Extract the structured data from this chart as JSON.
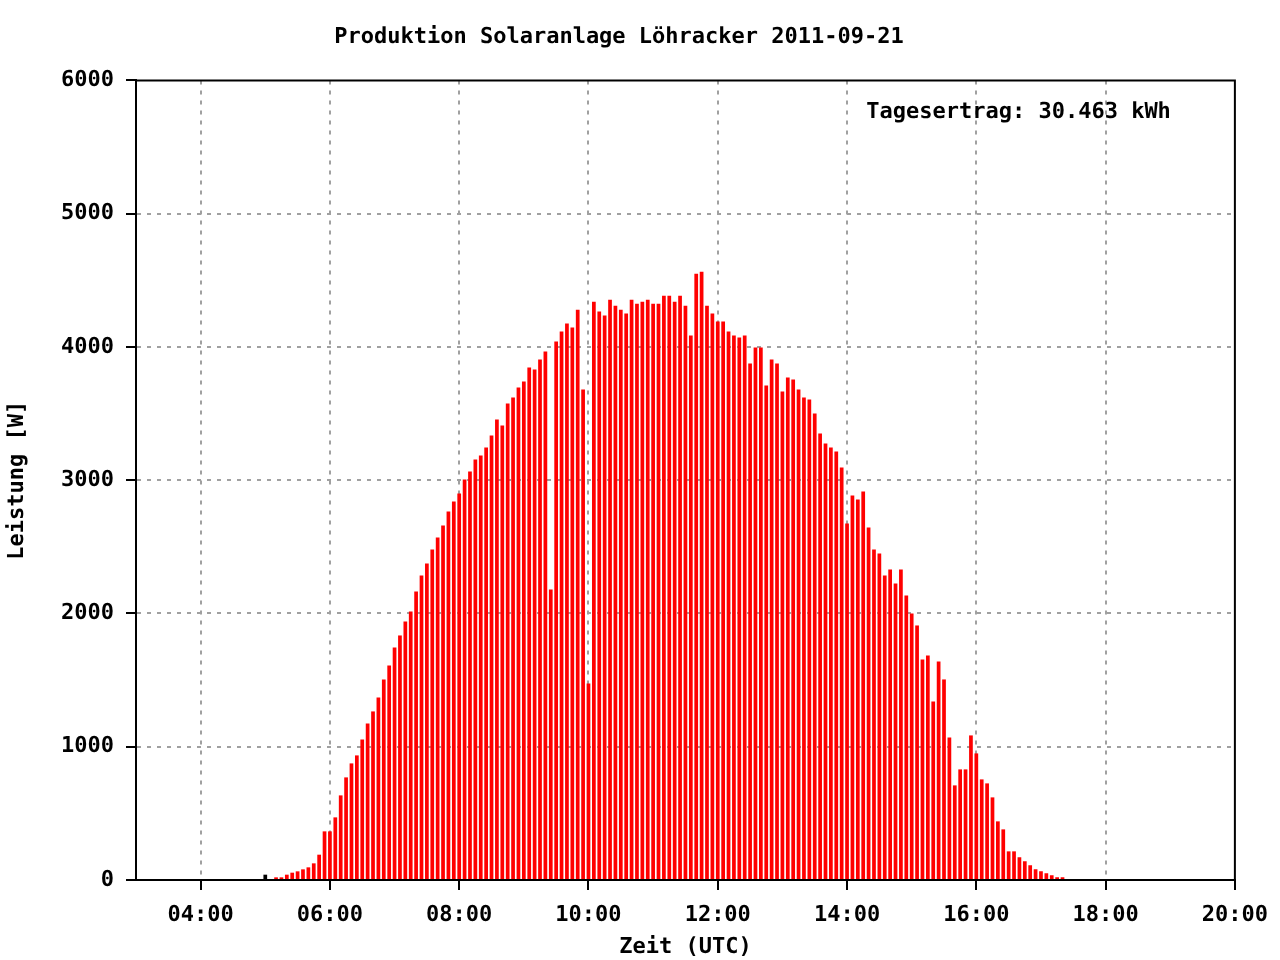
{
  "chart_data": {
    "type": "bar",
    "title": "Produktion Solaranlage Löhracker 2011-09-21",
    "xlabel": "Zeit (UTC)",
    "ylabel": "Leistung [W]",
    "annotations": [
      "Tagesertrag: 30.463 kWh"
    ],
    "x": [
      5,
      5.1667,
      5.25,
      5.3333,
      5.4167,
      5.5,
      5.5833,
      5.6667,
      5.75,
      5.8333,
      5.9167,
      6,
      6.0833,
      6.1667,
      6.25,
      6.3333,
      6.4167,
      6.5,
      6.5833,
      6.6667,
      6.75,
      6.8333,
      6.9167,
      7,
      7.0833,
      7.1667,
      7.25,
      7.3333,
      7.4167,
      7.5,
      7.5833,
      7.6667,
      7.75,
      7.8333,
      7.9167,
      8,
      8.0833,
      8.1667,
      8.25,
      8.3333,
      8.4167,
      8.5,
      8.5833,
      8.6667,
      8.75,
      8.8333,
      8.9167,
      9,
      9.0833,
      9.1667,
      9.25,
      9.3333,
      9.4167,
      9.5,
      9.5833,
      9.6667,
      9.75,
      9.8333,
      9.9167,
      10,
      10.0833,
      10.1667,
      10.25,
      10.3333,
      10.4167,
      10.5,
      10.5833,
      10.6667,
      10.75,
      10.8333,
      10.9167,
      11,
      11.0833,
      11.1667,
      11.25,
      11.3333,
      11.4167,
      11.5,
      11.5833,
      11.6667,
      11.75,
      11.8333,
      11.9167,
      12,
      12.0833,
      12.1667,
      12.25,
      12.3333,
      12.4167,
      12.5,
      12.5833,
      12.6667,
      12.75,
      12.8333,
      12.9167,
      13,
      13.0833,
      13.1667,
      13.25,
      13.3333,
      13.4167,
      13.5,
      13.5833,
      13.6667,
      13.75,
      13.8333,
      13.9167,
      14,
      14.0833,
      14.1667,
      14.25,
      14.3333,
      14.4167,
      14.5,
      14.5833,
      14.6667,
      14.75,
      14.8333,
      14.9167,
      15,
      15.0833,
      15.1667,
      15.25,
      15.3333,
      15.4167,
      15.5,
      15.5833,
      15.6667,
      15.75,
      15.8333,
      15.9167,
      16,
      16.0833,
      16.1667,
      16.25,
      16.3333,
      16.4167,
      16.5,
      16.5833,
      16.6667,
      16.75,
      16.8333,
      16.9167,
      17,
      17.0833,
      17.1667,
      17.25,
      17.3333
    ],
    "values": [
      35,
      15,
      15,
      35,
      50,
      60,
      75,
      90,
      120,
      185,
      360,
      360,
      465,
      630,
      765,
      870,
      930,
      1050,
      1170,
      1260,
      1365,
      1500,
      1605,
      1740,
      1830,
      1935,
      2010,
      2160,
      2280,
      2370,
      2475,
      2565,
      2655,
      2760,
      2835,
      2895,
      3000,
      3060,
      3150,
      3180,
      3240,
      3330,
      3450,
      3405,
      3570,
      3615,
      3690,
      3735,
      3840,
      3825,
      3900,
      3960,
      2175,
      4035,
      4110,
      4170,
      4140,
      4275,
      3675,
      1470,
      4335,
      4260,
      4230,
      4350,
      4305,
      4275,
      4245,
      4350,
      4320,
      4335,
      4350,
      4320,
      4320,
      4380,
      4380,
      4335,
      4380,
      4305,
      4080,
      4545,
      4560,
      4305,
      4245,
      4185,
      4185,
      4110,
      4080,
      4065,
      4080,
      3870,
      3990,
      3990,
      3705,
      3900,
      3870,
      3660,
      3765,
      3750,
      3675,
      3615,
      3600,
      3495,
      3345,
      3270,
      3240,
      3210,
      3090,
      2670,
      2880,
      2850,
      2910,
      2640,
      2475,
      2445,
      2280,
      2325,
      2220,
      2325,
      2130,
      1995,
      1905,
      1650,
      1680,
      1335,
      1635,
      1500,
      1065,
      705,
      825,
      825,
      1080,
      945,
      750,
      720,
      615,
      435,
      375,
      210,
      210,
      165,
      135,
      105,
      75,
      60,
      45,
      30,
      15,
      15
    ],
    "colors": [
      "#000000",
      "#ff0000",
      "#ff0000",
      "#ff0000",
      "#ff0000",
      "#ff0000",
      "#ff0000",
      "#ff0000",
      "#ff0000",
      "#ff0000",
      "#ff0000",
      "#ff0000",
      "#ff0000",
      "#ff0000",
      "#ff0000",
      "#ff0000",
      "#ff0000",
      "#ff0000",
      "#ff0000",
      "#ff0000",
      "#ff0000",
      "#ff0000",
      "#ff0000",
      "#ff0000",
      "#ff0000",
      "#ff0000",
      "#ff0000",
      "#ff0000",
      "#ff0000",
      "#ff0000",
      "#ff0000",
      "#ff0000",
      "#ff0000",
      "#ff0000",
      "#ff0000",
      "#ff0000",
      "#ff0000",
      "#ff0000",
      "#ff0000",
      "#ff0000",
      "#ff0000",
      "#ff0000",
      "#ff0000",
      "#ff0000",
      "#ff0000",
      "#ff0000",
      "#ff0000",
      "#ff0000",
      "#ff0000",
      "#ff0000",
      "#ff0000",
      "#ff0000",
      "#ff0000",
      "#ff0000",
      "#ff0000",
      "#ff0000",
      "#ff0000",
      "#ff0000",
      "#ff0000",
      "#ff0000",
      "#ff0000",
      "#ff0000",
      "#ff0000",
      "#ff0000",
      "#ff0000",
      "#ff0000",
      "#ff0000",
      "#ff0000",
      "#ff0000",
      "#ff0000",
      "#ff0000",
      "#ff0000",
      "#ff0000",
      "#ff0000",
      "#ff0000",
      "#ff0000",
      "#ff0000",
      "#ff0000",
      "#ff0000",
      "#ff0000",
      "#ff0000",
      "#ff0000",
      "#ff0000",
      "#ff0000",
      "#ff0000",
      "#ff0000",
      "#ff0000",
      "#ff0000",
      "#ff0000",
      "#ff0000",
      "#ff0000",
      "#ff0000",
      "#ff0000",
      "#ff0000",
      "#ff0000",
      "#ff0000",
      "#ff0000",
      "#ff0000",
      "#ff0000",
      "#ff0000",
      "#ff0000",
      "#ff0000",
      "#ff0000",
      "#ff0000",
      "#ff0000",
      "#ff0000",
      "#ff0000",
      "#ff0000",
      "#ff0000",
      "#ff0000",
      "#ff0000",
      "#ff0000",
      "#ff0000",
      "#ff0000",
      "#ff0000",
      "#ff0000",
      "#ff0000",
      "#ff0000",
      "#ff0000",
      "#ff0000",
      "#ff0000",
      "#ff0000",
      "#ff0000",
      "#ff0000",
      "#ff0000",
      "#ff0000",
      "#ff0000",
      "#ff0000",
      "#ff0000",
      "#ff0000",
      "#ff0000",
      "#ff0000",
      "#ff0000",
      "#ff0000",
      "#ff0000",
      "#ff0000",
      "#ff0000",
      "#ff0000",
      "#ff0000",
      "#ff0000",
      "#ff0000",
      "#ff0000",
      "#ff0000",
      "#ff0000",
      "#ff0000",
      "#ff0000",
      "#ff0000",
      "#ff0000"
    ],
    "xlim": [
      3,
      20
    ],
    "xticks": [
      {
        "value": 4,
        "label": "04:00"
      },
      {
        "value": 6,
        "label": "06:00"
      },
      {
        "value": 8,
        "label": "08:00"
      },
      {
        "value": 10,
        "label": "10:00"
      },
      {
        "value": 12,
        "label": "12:00"
      },
      {
        "value": 14,
        "label": "14:00"
      },
      {
        "value": 16,
        "label": "16:00"
      },
      {
        "value": 18,
        "label": "18:00"
      },
      {
        "value": 20,
        "label": "20:00"
      }
    ],
    "ylim": [
      0,
      6000
    ],
    "yticks": [
      0,
      1000,
      2000,
      3000,
      4000,
      5000,
      6000
    ],
    "grid": true
  }
}
